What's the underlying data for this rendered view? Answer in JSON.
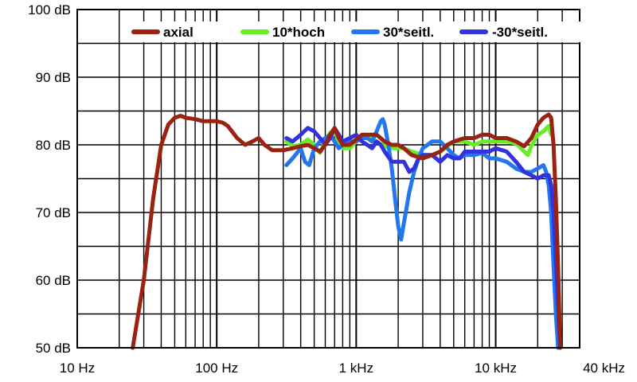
{
  "chart_data": {
    "type": "line",
    "title": "",
    "xlabel": "",
    "ylabel": "",
    "x_scale": "log",
    "xlim": [
      10,
      40000
    ],
    "ylim": [
      50,
      100
    ],
    "grid": true,
    "legend_position": "top",
    "x_ticks": [
      {
        "value": 10,
        "label": "10 Hz"
      },
      {
        "value": 100,
        "label": "100 Hz"
      },
      {
        "value": 1000,
        "label": "1 kHz"
      },
      {
        "value": 10000,
        "label": "10 kHz"
      },
      {
        "value": 40000,
        "label": "40 kHz"
      }
    ],
    "y_ticks": [
      {
        "value": 50,
        "label": "50 dB"
      },
      {
        "value": 60,
        "label": "60 dB"
      },
      {
        "value": 70,
        "label": "70 dB"
      },
      {
        "value": 80,
        "label": "80 dB"
      },
      {
        "value": 90,
        "label": "90 dB"
      },
      {
        "value": 100,
        "label": "100 dB"
      }
    ],
    "series": [
      {
        "name": "10*hoch",
        "color": "#66ee22",
        "points": [
          [
            316,
            80.5
          ],
          [
            350,
            79.8
          ],
          [
            400,
            80.0
          ],
          [
            450,
            80.8
          ],
          [
            500,
            80.0
          ],
          [
            550,
            78.8
          ],
          [
            600,
            80.5
          ],
          [
            650,
            81.8
          ],
          [
            700,
            82.0
          ],
          [
            750,
            80.5
          ],
          [
            800,
            79.5
          ],
          [
            900,
            79.5
          ],
          [
            1000,
            80.5
          ],
          [
            1100,
            81.2
          ],
          [
            1200,
            81.5
          ],
          [
            1400,
            80.5
          ],
          [
            1600,
            79.8
          ],
          [
            1800,
            79.5
          ],
          [
            2000,
            79.5
          ],
          [
            2200,
            79.5
          ],
          [
            2500,
            79.0
          ],
          [
            3000,
            78.5
          ],
          [
            3500,
            78.5
          ],
          [
            4000,
            79.0
          ],
          [
            4500,
            79.8
          ],
          [
            5000,
            80.5
          ],
          [
            6000,
            80.5
          ],
          [
            7000,
            80.0
          ],
          [
            8000,
            80.5
          ],
          [
            9000,
            80.5
          ],
          [
            10000,
            80.5
          ],
          [
            12000,
            80.5
          ],
          [
            14000,
            80.2
          ],
          [
            16000,
            79.0
          ],
          [
            17000,
            78.5
          ],
          [
            18000,
            79.8
          ],
          [
            20000,
            81.5
          ],
          [
            22000,
            82.0
          ],
          [
            24000,
            82.8
          ],
          [
            25000,
            81.5
          ]
        ]
      },
      {
        "name": "30*seitl.",
        "color": "#2277ee",
        "points": [
          [
            316,
            77.0
          ],
          [
            350,
            78.0
          ],
          [
            400,
            79.5
          ],
          [
            430,
            77.5
          ],
          [
            460,
            77.0
          ],
          [
            500,
            79.5
          ],
          [
            550,
            80.5
          ],
          [
            600,
            81.0
          ],
          [
            650,
            81.5
          ],
          [
            700,
            80.5
          ],
          [
            750,
            79.5
          ],
          [
            800,
            80.0
          ],
          [
            900,
            80.5
          ],
          [
            1000,
            80.5
          ],
          [
            1100,
            81.0
          ],
          [
            1200,
            81.0
          ],
          [
            1300,
            80.5
          ],
          [
            1400,
            82.0
          ],
          [
            1500,
            83.5
          ],
          [
            1550,
            83.8
          ],
          [
            1600,
            83.0
          ],
          [
            1700,
            80.0
          ],
          [
            1800,
            76.5
          ],
          [
            1900,
            72.0
          ],
          [
            2000,
            68.0
          ],
          [
            2100,
            66.0
          ],
          [
            2200,
            68.5
          ],
          [
            2400,
            73.0
          ],
          [
            2600,
            76.0
          ],
          [
            2800,
            78.0
          ],
          [
            3000,
            79.5
          ],
          [
            3500,
            80.5
          ],
          [
            4000,
            80.5
          ],
          [
            4500,
            79.5
          ],
          [
            5000,
            78.5
          ],
          [
            5500,
            78.0
          ],
          [
            6000,
            78.5
          ],
          [
            7000,
            78.5
          ],
          [
            8000,
            78.8
          ],
          [
            9000,
            78.0
          ],
          [
            10000,
            78.0
          ],
          [
            12000,
            77.5
          ],
          [
            14000,
            76.5
          ],
          [
            16000,
            76.0
          ],
          [
            18000,
            76.0
          ],
          [
            20000,
            76.5
          ],
          [
            22000,
            77.0
          ],
          [
            23000,
            76.0
          ],
          [
            24000,
            74.0
          ],
          [
            25000,
            70.0
          ],
          [
            26000,
            62.0
          ],
          [
            27000,
            55.0
          ],
          [
            28000,
            50.0
          ]
        ]
      },
      {
        "name": "-30*seitl.",
        "color": "#3333dd",
        "points": [
          [
            316,
            81.0
          ],
          [
            350,
            80.5
          ],
          [
            400,
            81.5
          ],
          [
            450,
            82.5
          ],
          [
            500,
            82.0
          ],
          [
            550,
            81.0
          ],
          [
            600,
            80.0
          ],
          [
            650,
            81.0
          ],
          [
            700,
            82.5
          ],
          [
            750,
            81.5
          ],
          [
            800,
            80.5
          ],
          [
            900,
            81.0
          ],
          [
            1000,
            81.5
          ],
          [
            1100,
            80.5
          ],
          [
            1200,
            80.0
          ],
          [
            1300,
            79.5
          ],
          [
            1400,
            80.5
          ],
          [
            1500,
            80.0
          ],
          [
            1600,
            79.0
          ],
          [
            1800,
            77.5
          ],
          [
            2000,
            77.5
          ],
          [
            2200,
            77.5
          ],
          [
            2400,
            76.0
          ],
          [
            2600,
            76.5
          ],
          [
            2800,
            78.0
          ],
          [
            3000,
            78.5
          ],
          [
            3500,
            78.5
          ],
          [
            4000,
            77.5
          ],
          [
            4500,
            78.5
          ],
          [
            5000,
            78.0
          ],
          [
            5500,
            78.0
          ],
          [
            6000,
            79.0
          ],
          [
            7000,
            79.0
          ],
          [
            8000,
            79.0
          ],
          [
            9000,
            79.0
          ],
          [
            10000,
            79.5
          ],
          [
            12000,
            79.0
          ],
          [
            14000,
            77.5
          ],
          [
            16000,
            76.0
          ],
          [
            18000,
            75.5
          ],
          [
            20000,
            75.0
          ],
          [
            22000,
            75.5
          ],
          [
            24000,
            75.5
          ],
          [
            25000,
            74.0
          ],
          [
            26000,
            70.0
          ],
          [
            27000,
            63.0
          ],
          [
            28000,
            56.0
          ],
          [
            29000,
            50.0
          ]
        ]
      },
      {
        "name": "axial",
        "color": "#992211",
        "points": [
          [
            25,
            50.0
          ],
          [
            30,
            60.0
          ],
          [
            35,
            72.0
          ],
          [
            40,
            80.0
          ],
          [
            45,
            83.0
          ],
          [
            50,
            84.0
          ],
          [
            55,
            84.3
          ],
          [
            60,
            84.0
          ],
          [
            70,
            83.8
          ],
          [
            80,
            83.5
          ],
          [
            90,
            83.5
          ],
          [
            100,
            83.5
          ],
          [
            110,
            83.3
          ],
          [
            120,
            82.8
          ],
          [
            140,
            81.0
          ],
          [
            160,
            80.0
          ],
          [
            180,
            80.5
          ],
          [
            200,
            81.0
          ],
          [
            220,
            80.0
          ],
          [
            250,
            79.2
          ],
          [
            300,
            79.2
          ],
          [
            350,
            79.5
          ],
          [
            400,
            79.8
          ],
          [
            450,
            80.0
          ],
          [
            500,
            79.5
          ],
          [
            550,
            79.0
          ],
          [
            600,
            80.0
          ],
          [
            650,
            81.5
          ],
          [
            700,
            82.5
          ],
          [
            750,
            81.0
          ],
          [
            800,
            80.0
          ],
          [
            900,
            80.0
          ],
          [
            1000,
            80.8
          ],
          [
            1100,
            81.5
          ],
          [
            1200,
            81.5
          ],
          [
            1400,
            81.5
          ],
          [
            1600,
            80.5
          ],
          [
            1800,
            80.0
          ],
          [
            2000,
            80.0
          ],
          [
            2200,
            79.5
          ],
          [
            2500,
            78.5
          ],
          [
            3000,
            78.0
          ],
          [
            3500,
            78.5
          ],
          [
            4000,
            79.0
          ],
          [
            4500,
            80.0
          ],
          [
            5000,
            80.5
          ],
          [
            6000,
            81.0
          ],
          [
            7000,
            81.0
          ],
          [
            8000,
            81.5
          ],
          [
            9000,
            81.5
          ],
          [
            10000,
            81.0
          ],
          [
            12000,
            81.0
          ],
          [
            14000,
            80.5
          ],
          [
            16000,
            79.8
          ],
          [
            18000,
            81.0
          ],
          [
            20000,
            83.0
          ],
          [
            22000,
            84.0
          ],
          [
            24000,
            84.5
          ],
          [
            25000,
            84.0
          ],
          [
            26000,
            80.0
          ],
          [
            27000,
            72.0
          ],
          [
            28000,
            62.0
          ],
          [
            29000,
            50.0
          ]
        ]
      }
    ],
    "legend": [
      {
        "name": "axial",
        "color": "#992211"
      },
      {
        "name": "10*hoch",
        "color": "#66ee22"
      },
      {
        "name": "30*seitl.",
        "color": "#2277ee"
      },
      {
        "name": "-30*seitl.",
        "color": "#3333dd"
      }
    ]
  }
}
